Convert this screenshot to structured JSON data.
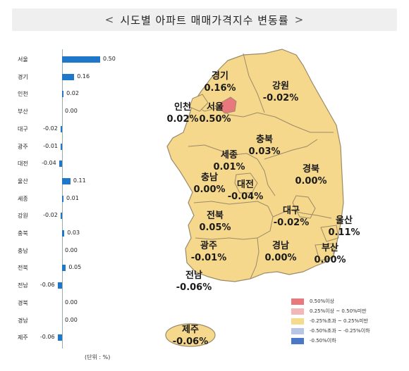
{
  "title": "시도별 아파트 매매가격지수 변동률",
  "unit_label": "(단위 : %)",
  "chart_data": {
    "type": "bar",
    "categories": [
      "서울",
      "경기",
      "인천",
      "부산",
      "대구",
      "광주",
      "대전",
      "울산",
      "세종",
      "강원",
      "충북",
      "충남",
      "전북",
      "전남",
      "경북",
      "경남",
      "제주"
    ],
    "values": [
      0.5,
      0.16,
      0.02,
      0.0,
      -0.02,
      -0.01,
      -0.04,
      0.11,
      0.01,
      -0.02,
      0.03,
      0.0,
      0.05,
      -0.06,
      0.0,
      0.0,
      -0.06
    ],
    "value_labels": [
      "0.50",
      "0.16",
      "0.02",
      "0.00",
      "-0.02",
      "-0.01",
      "-0.04",
      "0.11",
      "0.01",
      "-0.02",
      "0.03",
      "0.00",
      "0.05",
      "-0.06",
      "0.00",
      "0.00",
      "-0.06"
    ],
    "bar_color": "#1f77c9"
  },
  "map_regions": [
    {
      "name": "경기",
      "value": "0.16%"
    },
    {
      "name": "강원",
      "value": "-0.02%"
    },
    {
      "name": "인천",
      "value": "0.02%"
    },
    {
      "name": "서울",
      "value": "0.50%"
    },
    {
      "name": "충북",
      "value": "0.03%"
    },
    {
      "name": "세종",
      "value": "0.01%"
    },
    {
      "name": "충남",
      "value": "0.00%"
    },
    {
      "name": "대전",
      "value": "-0.04%"
    },
    {
      "name": "경북",
      "value": "0.00%"
    },
    {
      "name": "전북",
      "value": "0.05%"
    },
    {
      "name": "대구",
      "value": "-0.02%"
    },
    {
      "name": "울산",
      "value": "0.11%"
    },
    {
      "name": "광주",
      "value": "-0.01%"
    },
    {
      "name": "경남",
      "value": "0.00%"
    },
    {
      "name": "부산",
      "value": "0.00%"
    },
    {
      "name": "전남",
      "value": "-0.06%"
    },
    {
      "name": "제주",
      "value": "-0.06%"
    }
  ],
  "legend": [
    {
      "label": "0.50%이상",
      "color": "#e8787c"
    },
    {
      "label": "0.25%이상 ~ 0.50%미만",
      "color": "#f2b8b8"
    },
    {
      "label": "-0.25%초과 ~ 0.25%미만",
      "color": "#f5dc8c"
    },
    {
      "label": "-0.50%초과 ~ -0.25%이하",
      "color": "#b7c6e4"
    },
    {
      "label": "-0.50%이하",
      "color": "#4a78c8"
    }
  ],
  "colors": {
    "map_fill": "#f5d88c",
    "map_stroke": "#9b8a68",
    "seoul_fill": "#e8787c"
  }
}
